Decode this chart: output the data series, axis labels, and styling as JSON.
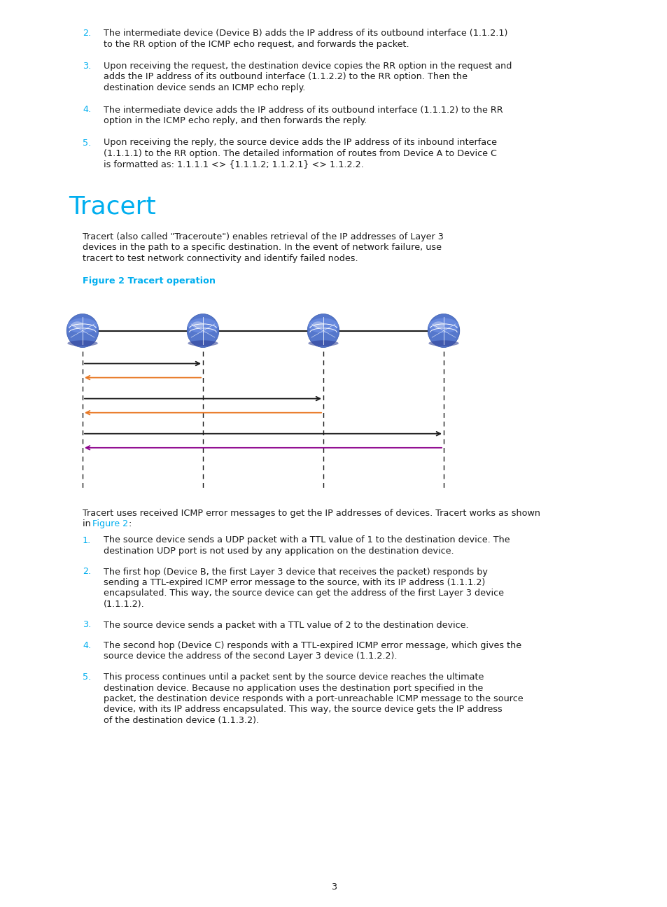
{
  "bg_color": "#ffffff",
  "cyan": "#00AEEF",
  "black": "#1a1a1a",
  "orange": "#E87722",
  "purple": "#8B008B",
  "title": "Tracert",
  "title_fontsize": 26,
  "fig_caption": "Figure 2 Tracert operation",
  "body_fontsize": 9.2,
  "para2_items": [
    [
      "2.",
      "The intermediate device (Device B) adds the IP address of its outbound interface (1.1.2.1) to the RR option of the ICMP echo request, and forwards the packet."
    ],
    [
      "3.",
      "Upon receiving the request, the destination device copies the RR option in the request and adds the IP address of its outbound interface (1.1.2.2) to the RR option. Then the destination device sends an ICMP echo reply."
    ],
    [
      "4.",
      "The intermediate device adds the IP address of its outbound interface (1.1.1.2) to the RR option in the ICMP echo reply, and then forwards the reply."
    ],
    [
      "5.",
      "Upon receiving the reply, the source device adds the IP address of its inbound interface (1.1.1.1) to the RR option. The detailed information of routes from Device A to Device C is formatted as: 1.1.1.1 <> {1.1.1.2; 1.1.2.1} <> 1.1.2.2."
    ]
  ],
  "tracert_intro": "Tracert (also called \"Traceroute\") enables retrieval of the IP addresses of Layer 3 devices in the path to a specific destination. In the event of network failure, use tracert to test network connectivity and identify failed nodes.",
  "bottom_items": [
    [
      "1.",
      "The source device sends a UDP packet with a TTL value of 1 to the destination device. The destination UDP port is not used by any application on the destination device."
    ],
    [
      "2.",
      "The first hop (Device B, the first Layer 3 device that receives the packet) responds by sending a TTL-expired ICMP error message to the source, with its IP address (1.1.1.2) encapsulated. This way, the source device can get the address of the first Layer 3 device (1.1.1.2)."
    ],
    [
      "3.",
      "The source device sends a packet with a TTL value of 2 to the destination device."
    ],
    [
      "4.",
      "The second hop (Device C) responds with a TTL-expired ICMP error message, which gives the source device the address of the second Layer 3 device (1.1.2.2)."
    ],
    [
      "5.",
      "This process continues until a packet sent by the source device reaches the ultimate destination device. Because no application uses the destination port specified in the packet, the destination device responds with a port-unreachable ICMP message to the source device, with its IP address encapsulated. This way, the source device gets the IP address of the destination device (1.1.3.2)."
    ]
  ],
  "page_num": "3"
}
